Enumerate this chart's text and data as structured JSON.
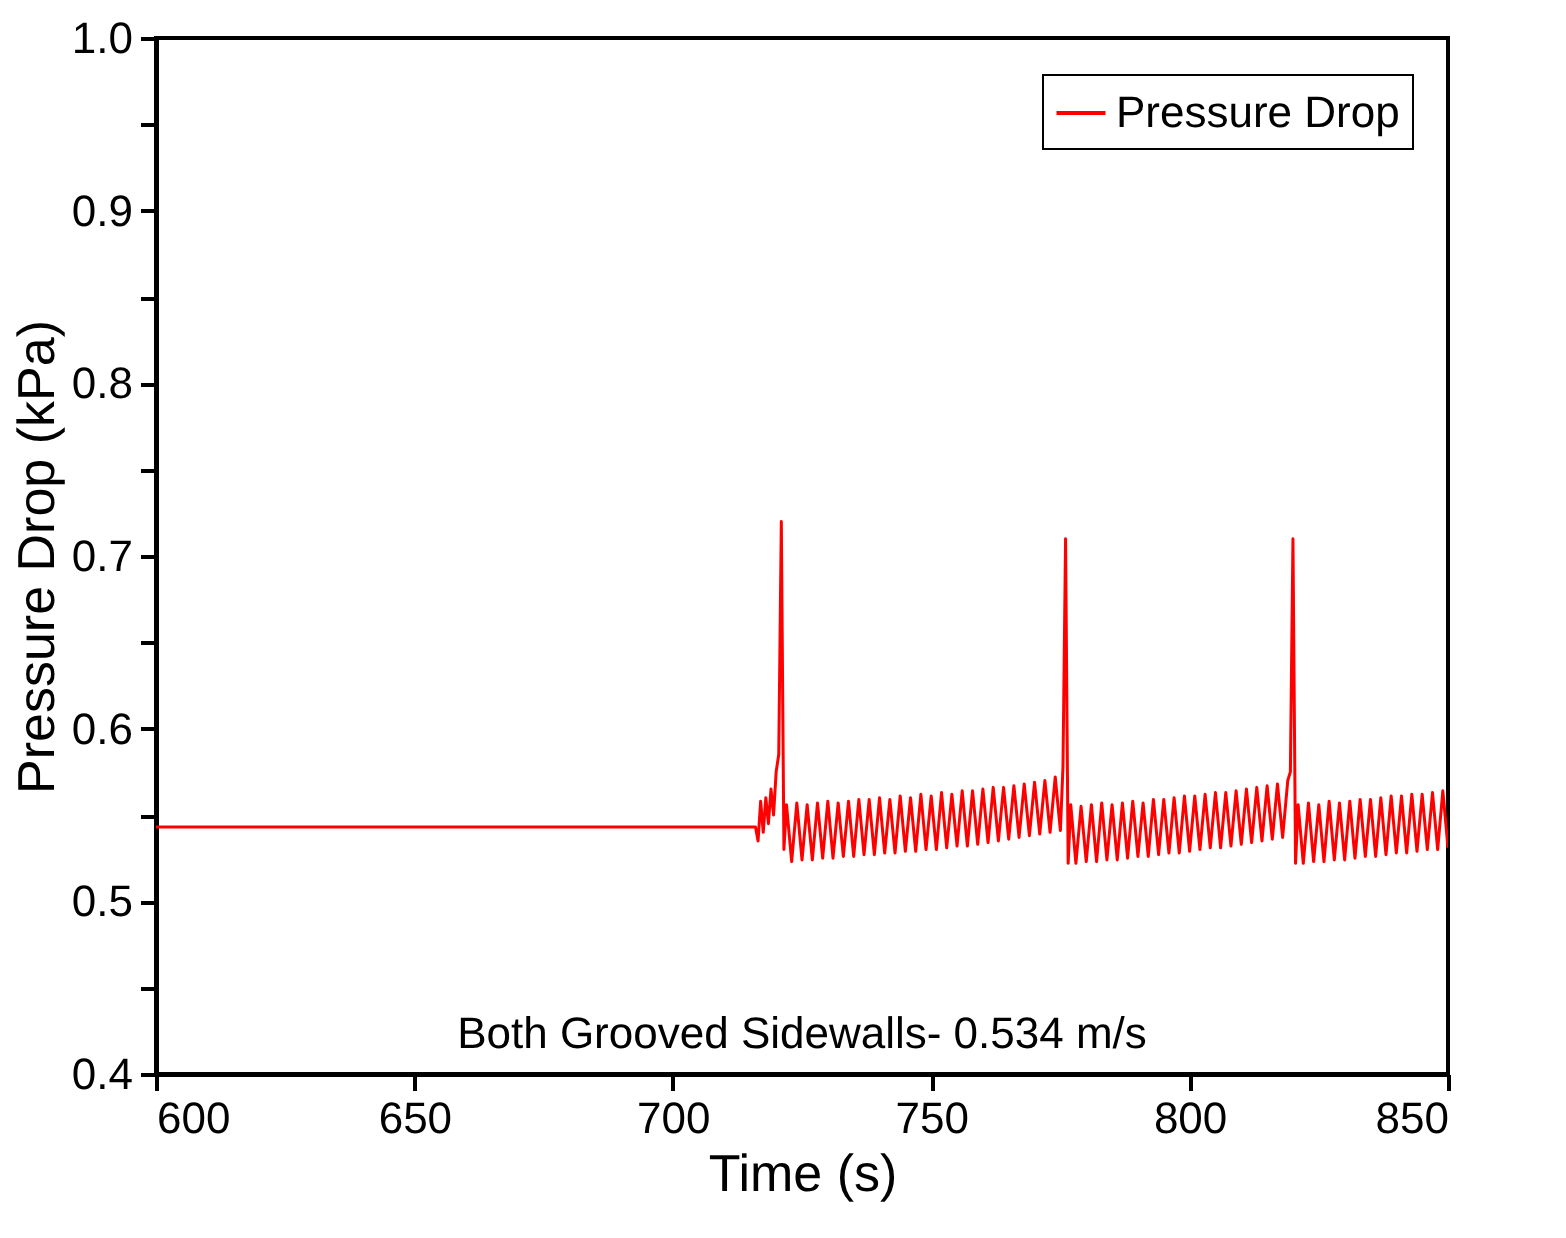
{
  "chart_data": {
    "type": "line",
    "xlabel": "Time (s)",
    "ylabel": "Pressure Drop (kPa)",
    "xlim": [
      600,
      850
    ],
    "xticks": [
      600,
      650,
      700,
      750,
      800,
      850
    ],
    "ylim": [
      0.4,
      1.0
    ],
    "yticks": [
      {
        "value": 0.4,
        "label": "0.4"
      },
      {
        "value": 0.45,
        "label": null
      },
      {
        "value": 0.5,
        "label": "0.5"
      },
      {
        "value": 0.55,
        "label": null
      },
      {
        "value": 0.6,
        "label": "0.6"
      },
      {
        "value": 0.65,
        "label": null
      },
      {
        "value": 0.7,
        "label": "0.7"
      },
      {
        "value": 0.75,
        "label": null
      },
      {
        "value": 0.8,
        "label": "0.8"
      },
      {
        "value": 0.85,
        "label": null
      },
      {
        "value": 0.9,
        "label": "0.9"
      },
      {
        "value": 0.95,
        "label": null
      },
      {
        "value": 1.0,
        "label": "1.0"
      }
    ],
    "grid": false,
    "legend": "top right",
    "marker": "none",
    "line_style": "solid",
    "annotations": [
      "Both Grooved Sidewalls- 0.534 m/s"
    ],
    "series": [
      {
        "name": "Pressure Drop",
        "color": "#ff0000",
        "x": [
          600,
          716,
          716.5,
          717,
          717.5,
          718,
          718.5,
          719,
          719.5,
          720,
          720.5,
          721,
          721.5,
          722,
          723,
          724,
          725,
          726,
          727,
          728,
          729,
          730,
          731,
          732,
          733,
          734,
          735,
          736,
          737,
          738,
          739,
          740,
          741,
          742,
          743,
          744,
          745,
          746,
          747,
          748,
          749,
          750,
          751,
          752,
          753,
          754,
          755,
          756,
          757,
          758,
          759,
          760,
          761,
          762,
          763,
          764,
          765,
          766,
          767,
          768,
          769,
          770,
          771,
          772,
          773,
          774,
          775,
          775.5,
          776,
          776.5,
          777,
          778,
          779,
          780,
          781,
          782,
          783,
          784,
          785,
          786,
          787,
          788,
          789,
          790,
          791,
          792,
          793,
          794,
          795,
          796,
          797,
          798,
          799,
          800,
          801,
          802,
          803,
          804,
          805,
          806,
          807,
          808,
          809,
          810,
          811,
          812,
          813,
          814,
          815,
          816,
          817,
          818,
          819,
          819.5,
          820,
          820.5,
          821,
          822,
          823,
          824,
          825,
          826,
          827,
          828,
          829,
          830,
          831,
          832,
          833,
          834,
          835,
          836,
          837,
          838,
          839,
          840,
          841,
          842,
          843,
          844,
          845,
          846,
          847,
          848,
          849,
          850
        ],
        "values": [
          0.543,
          0.543,
          0.535,
          0.558,
          0.54,
          0.56,
          0.545,
          0.565,
          0.55,
          0.575,
          0.585,
          0.72,
          0.53,
          0.556,
          0.523,
          0.557,
          0.524,
          0.556,
          0.524,
          0.557,
          0.525,
          0.558,
          0.525,
          0.557,
          0.526,
          0.558,
          0.526,
          0.559,
          0.527,
          0.559,
          0.527,
          0.56,
          0.528,
          0.559,
          0.528,
          0.561,
          0.529,
          0.56,
          0.529,
          0.562,
          0.53,
          0.561,
          0.53,
          0.563,
          0.531,
          0.562,
          0.532,
          0.564,
          0.532,
          0.564,
          0.533,
          0.565,
          0.534,
          0.566,
          0.535,
          0.566,
          0.536,
          0.567,
          0.537,
          0.568,
          0.538,
          0.569,
          0.539,
          0.57,
          0.54,
          0.572,
          0.541,
          0.578,
          0.71,
          0.522,
          0.556,
          0.522,
          0.555,
          0.523,
          0.556,
          0.523,
          0.557,
          0.524,
          0.556,
          0.524,
          0.557,
          0.525,
          0.558,
          0.526,
          0.557,
          0.526,
          0.559,
          0.527,
          0.559,
          0.528,
          0.56,
          0.528,
          0.561,
          0.529,
          0.561,
          0.53,
          0.562,
          0.531,
          0.563,
          0.531,
          0.563,
          0.532,
          0.564,
          0.533,
          0.565,
          0.534,
          0.566,
          0.535,
          0.567,
          0.536,
          0.568,
          0.537,
          0.57,
          0.575,
          0.71,
          0.522,
          0.556,
          0.522,
          0.557,
          0.523,
          0.556,
          0.523,
          0.558,
          0.524,
          0.557,
          0.524,
          0.558,
          0.525,
          0.559,
          0.526,
          0.559,
          0.526,
          0.56,
          0.527,
          0.561,
          0.528,
          0.561,
          0.528,
          0.562,
          0.529,
          0.562,
          0.53,
          0.563,
          0.53,
          0.564,
          0.531
        ]
      }
    ]
  }
}
